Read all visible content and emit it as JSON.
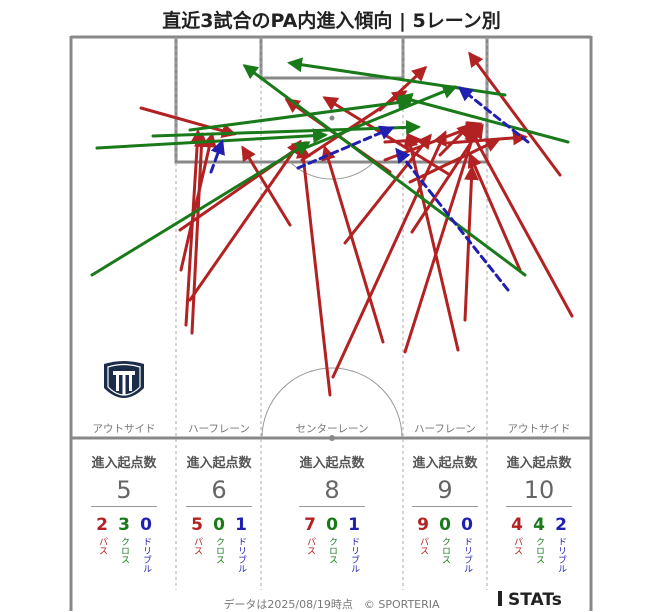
{
  "title": "直近3試合のPA内進入傾向 | 5レーン別",
  "lanes": [
    {
      "id": "outside-left",
      "label": "アウトサイド",
      "header": "進入起点数",
      "total": "5",
      "pass": "2",
      "cross": "3",
      "dribble": "0"
    },
    {
      "id": "halfspace-left",
      "label": "ハーフレーン",
      "header": "進入起点数",
      "total": "6",
      "pass": "5",
      "cross": "0",
      "dribble": "1"
    },
    {
      "id": "center",
      "label": "センターレーン",
      "header": "進入起点数",
      "total": "8",
      "pass": "7",
      "cross": "0",
      "dribble": "1"
    },
    {
      "id": "halfspace-right",
      "label": "ハーフレーン",
      "header": "進入起点数",
      "total": "9",
      "pass": "9",
      "cross": "0",
      "dribble": "0"
    },
    {
      "id": "outside-right",
      "label": "アウトサイド",
      "header": "進入起点数",
      "total": "10",
      "pass": "4",
      "cross": "4",
      "dribble": "2"
    }
  ],
  "legend": {
    "pass": "パス",
    "cross": "クロス",
    "dribble": "ドリブル"
  },
  "colors": {
    "pass": "#b22222",
    "cross": "#1a7a1a",
    "dribble": "#1f1fb0",
    "pitch_line": "#888888",
    "lane_line": "#999999"
  },
  "footer": "データは2025/08/19時点　© SPORTERIA",
  "brand": "STATs",
  "team_logo": "team-crest-icon"
}
